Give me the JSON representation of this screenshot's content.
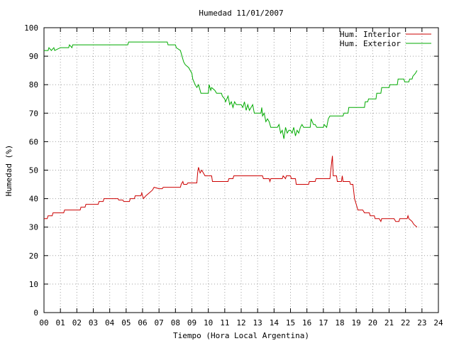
{
  "chart_data": {
    "type": "line",
    "title": "Humedad 11/01/2007",
    "xlabel": "Tiempo (Hora Local Argentina)",
    "ylabel": "Humedad (%)",
    "xlim": [
      0,
      24
    ],
    "ylim": [
      0,
      100
    ],
    "xticks": [
      "00",
      "01",
      "02",
      "03",
      "04",
      "05",
      "06",
      "07",
      "08",
      "09",
      "10",
      "11",
      "12",
      "13",
      "14",
      "15",
      "16",
      "17",
      "18",
      "19",
      "20",
      "21",
      "22",
      "23",
      "24"
    ],
    "yticks": [
      0,
      10,
      20,
      30,
      40,
      50,
      60,
      70,
      80,
      90,
      100
    ],
    "grid": true,
    "legend_position": "top-right",
    "series": [
      {
        "name": "Hum. Interior",
        "color": "#cc0000",
        "points": [
          [
            0.0,
            33
          ],
          [
            0.2,
            33
          ],
          [
            0.25,
            34
          ],
          [
            0.5,
            34
          ],
          [
            0.55,
            35
          ],
          [
            1.2,
            35
          ],
          [
            1.25,
            36
          ],
          [
            2.2,
            36
          ],
          [
            2.25,
            37
          ],
          [
            2.5,
            37
          ],
          [
            2.55,
            38
          ],
          [
            3.3,
            38
          ],
          [
            3.35,
            39
          ],
          [
            3.6,
            39
          ],
          [
            3.65,
            40
          ],
          [
            4.5,
            40
          ],
          [
            4.55,
            39.5
          ],
          [
            4.8,
            39.5
          ],
          [
            4.85,
            39
          ],
          [
            5.2,
            39
          ],
          [
            5.25,
            40
          ],
          [
            5.5,
            40
          ],
          [
            5.55,
            41
          ],
          [
            5.9,
            41
          ],
          [
            5.95,
            42
          ],
          [
            6.05,
            40
          ],
          [
            6.2,
            41
          ],
          [
            6.4,
            42
          ],
          [
            6.6,
            43
          ],
          [
            6.7,
            44
          ],
          [
            7.0,
            43.5
          ],
          [
            7.2,
            43.5
          ],
          [
            7.25,
            44
          ],
          [
            8.3,
            44
          ],
          [
            8.35,
            45
          ],
          [
            8.45,
            46
          ],
          [
            8.5,
            45
          ],
          [
            8.7,
            45
          ],
          [
            8.75,
            45.5
          ],
          [
            9.3,
            45.5
          ],
          [
            9.35,
            49
          ],
          [
            9.4,
            51
          ],
          [
            9.5,
            49
          ],
          [
            9.6,
            50
          ],
          [
            9.8,
            48
          ],
          [
            10.2,
            48
          ],
          [
            10.25,
            46
          ],
          [
            11.2,
            46
          ],
          [
            11.25,
            47
          ],
          [
            11.5,
            47
          ],
          [
            11.55,
            48
          ],
          [
            13.3,
            48
          ],
          [
            13.35,
            47
          ],
          [
            13.7,
            47
          ],
          [
            13.75,
            46
          ],
          [
            13.8,
            47
          ],
          [
            14.5,
            47
          ],
          [
            14.55,
            48
          ],
          [
            14.7,
            47
          ],
          [
            14.75,
            48
          ],
          [
            15.0,
            48
          ],
          [
            15.05,
            47
          ],
          [
            15.3,
            47
          ],
          [
            15.35,
            45
          ],
          [
            16.1,
            45
          ],
          [
            16.15,
            46
          ],
          [
            16.5,
            46
          ],
          [
            16.55,
            47
          ],
          [
            17.4,
            47
          ],
          [
            17.45,
            50
          ],
          [
            17.55,
            55
          ],
          [
            17.6,
            48
          ],
          [
            17.8,
            48
          ],
          [
            17.85,
            46
          ],
          [
            18.1,
            46
          ],
          [
            18.15,
            48
          ],
          [
            18.2,
            46
          ],
          [
            18.6,
            46
          ],
          [
            18.65,
            45
          ],
          [
            18.8,
            45
          ],
          [
            18.9,
            40
          ],
          [
            19.0,
            38
          ],
          [
            19.1,
            36
          ],
          [
            19.4,
            36
          ],
          [
            19.5,
            35
          ],
          [
            19.8,
            35
          ],
          [
            19.85,
            34
          ],
          [
            20.1,
            34
          ],
          [
            20.15,
            33
          ],
          [
            20.4,
            33
          ],
          [
            20.5,
            32
          ],
          [
            20.55,
            33
          ],
          [
            21.3,
            33
          ],
          [
            21.4,
            32
          ],
          [
            21.6,
            32
          ],
          [
            21.65,
            33
          ],
          [
            22.1,
            33
          ],
          [
            22.15,
            34
          ],
          [
            22.2,
            33
          ],
          [
            22.4,
            32
          ],
          [
            22.5,
            31
          ],
          [
            22.7,
            30
          ]
        ]
      },
      {
        "name": "Hum. Exterior",
        "color": "#00aa00",
        "points": [
          [
            0.0,
            92
          ],
          [
            0.25,
            92
          ],
          [
            0.3,
            93
          ],
          [
            0.45,
            92
          ],
          [
            0.6,
            93
          ],
          [
            0.65,
            92
          ],
          [
            1.0,
            93
          ],
          [
            1.5,
            93
          ],
          [
            1.55,
            94
          ],
          [
            1.7,
            93
          ],
          [
            1.75,
            94
          ],
          [
            5.1,
            94
          ],
          [
            5.15,
            95
          ],
          [
            7.5,
            95
          ],
          [
            7.55,
            94
          ],
          [
            8.0,
            94
          ],
          [
            8.05,
            93
          ],
          [
            8.3,
            92
          ],
          [
            8.4,
            90
          ],
          [
            8.5,
            88
          ],
          [
            8.6,
            87
          ],
          [
            8.8,
            86
          ],
          [
            9.0,
            84
          ],
          [
            9.05,
            82
          ],
          [
            9.2,
            80
          ],
          [
            9.3,
            79
          ],
          [
            9.4,
            80
          ],
          [
            9.5,
            78
          ],
          [
            9.55,
            77
          ],
          [
            10.0,
            77
          ],
          [
            10.05,
            80
          ],
          [
            10.15,
            78
          ],
          [
            10.2,
            79
          ],
          [
            10.4,
            78
          ],
          [
            10.5,
            77
          ],
          [
            10.8,
            77
          ],
          [
            10.85,
            76
          ],
          [
            11.0,
            75
          ],
          [
            11.05,
            74
          ],
          [
            11.2,
            76
          ],
          [
            11.3,
            73
          ],
          [
            11.4,
            74
          ],
          [
            11.5,
            72
          ],
          [
            11.6,
            74
          ],
          [
            11.7,
            73
          ],
          [
            12.0,
            73
          ],
          [
            12.1,
            72
          ],
          [
            12.2,
            74
          ],
          [
            12.3,
            71
          ],
          [
            12.4,
            73
          ],
          [
            12.5,
            71
          ],
          [
            12.7,
            73
          ],
          [
            12.8,
            70
          ],
          [
            13.2,
            70
          ],
          [
            13.25,
            72
          ],
          [
            13.3,
            69
          ],
          [
            13.4,
            70
          ],
          [
            13.5,
            67
          ],
          [
            13.6,
            68
          ],
          [
            13.7,
            67
          ],
          [
            13.8,
            65
          ],
          [
            14.2,
            65
          ],
          [
            14.3,
            66
          ],
          [
            14.4,
            63
          ],
          [
            14.5,
            64
          ],
          [
            14.6,
            61
          ],
          [
            14.7,
            65
          ],
          [
            14.8,
            63
          ],
          [
            14.9,
            64
          ],
          [
            15.0,
            64
          ],
          [
            15.1,
            63
          ],
          [
            15.2,
            65
          ],
          [
            15.3,
            62
          ],
          [
            15.4,
            64
          ],
          [
            15.5,
            63
          ],
          [
            15.6,
            65
          ],
          [
            15.7,
            66
          ],
          [
            15.8,
            65
          ],
          [
            16.2,
            65
          ],
          [
            16.25,
            68
          ],
          [
            16.4,
            66
          ],
          [
            16.5,
            66
          ],
          [
            16.6,
            65
          ],
          [
            17.0,
            65
          ],
          [
            17.05,
            66
          ],
          [
            17.2,
            65
          ],
          [
            17.3,
            68
          ],
          [
            17.4,
            69
          ],
          [
            18.2,
            69
          ],
          [
            18.25,
            70
          ],
          [
            18.5,
            70
          ],
          [
            18.55,
            72
          ],
          [
            19.5,
            72
          ],
          [
            19.55,
            74
          ],
          [
            19.7,
            74
          ],
          [
            19.75,
            75
          ],
          [
            20.2,
            75
          ],
          [
            20.25,
            77
          ],
          [
            20.5,
            77
          ],
          [
            20.55,
            79
          ],
          [
            21.0,
            79
          ],
          [
            21.05,
            80
          ],
          [
            21.5,
            80
          ],
          [
            21.55,
            82
          ],
          [
            21.9,
            82
          ],
          [
            21.95,
            81
          ],
          [
            22.2,
            81
          ],
          [
            22.25,
            82
          ],
          [
            22.4,
            82
          ],
          [
            22.45,
            83
          ],
          [
            22.6,
            84
          ],
          [
            22.7,
            85
          ]
        ]
      }
    ]
  }
}
